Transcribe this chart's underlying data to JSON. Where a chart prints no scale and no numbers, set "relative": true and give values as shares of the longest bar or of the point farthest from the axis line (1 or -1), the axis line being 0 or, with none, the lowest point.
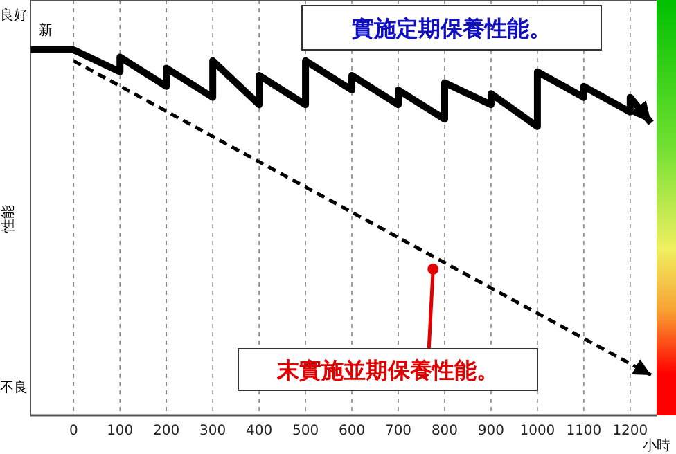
{
  "chart_data": {
    "type": "line",
    "relative": true,
    "xlabel": "小時",
    "ylabel": "性能",
    "xlim": [
      -93,
      1257
    ],
    "xticks": [
      0,
      100,
      200,
      300,
      400,
      500,
      600,
      700,
      800,
      900,
      1000,
      1100,
      1200
    ],
    "grid": "x",
    "annotations": [
      "良好",
      "不良",
      "新"
    ],
    "series": [
      {
        "name": "實施定期保養性能。",
        "color": "#000000",
        "line_style": "solid",
        "x": [
          -92,
          0,
          100,
          100,
          200,
          200,
          300,
          300,
          400,
          400,
          500,
          500,
          600,
          600,
          700,
          700,
          800,
          800,
          900,
          900,
          1000,
          1000,
          1100,
          1100,
          1200,
          1200,
          1245
        ],
        "values": [
          1.0,
          1.0,
          0.94,
          0.98,
          0.9,
          0.95,
          0.87,
          0.97,
          0.85,
          0.93,
          0.85,
          0.97,
          0.89,
          0.93,
          0.85,
          0.89,
          0.81,
          0.91,
          0.85,
          0.88,
          0.79,
          0.94,
          0.87,
          0.9,
          0.83,
          0.87,
          0.8
        ]
      },
      {
        "name": "末實施並期保養性能。",
        "color": "#000000",
        "line_style": "dashed",
        "x": [
          0,
          1245
        ],
        "values": [
          0.97,
          0.11
        ]
      }
    ]
  }
}
